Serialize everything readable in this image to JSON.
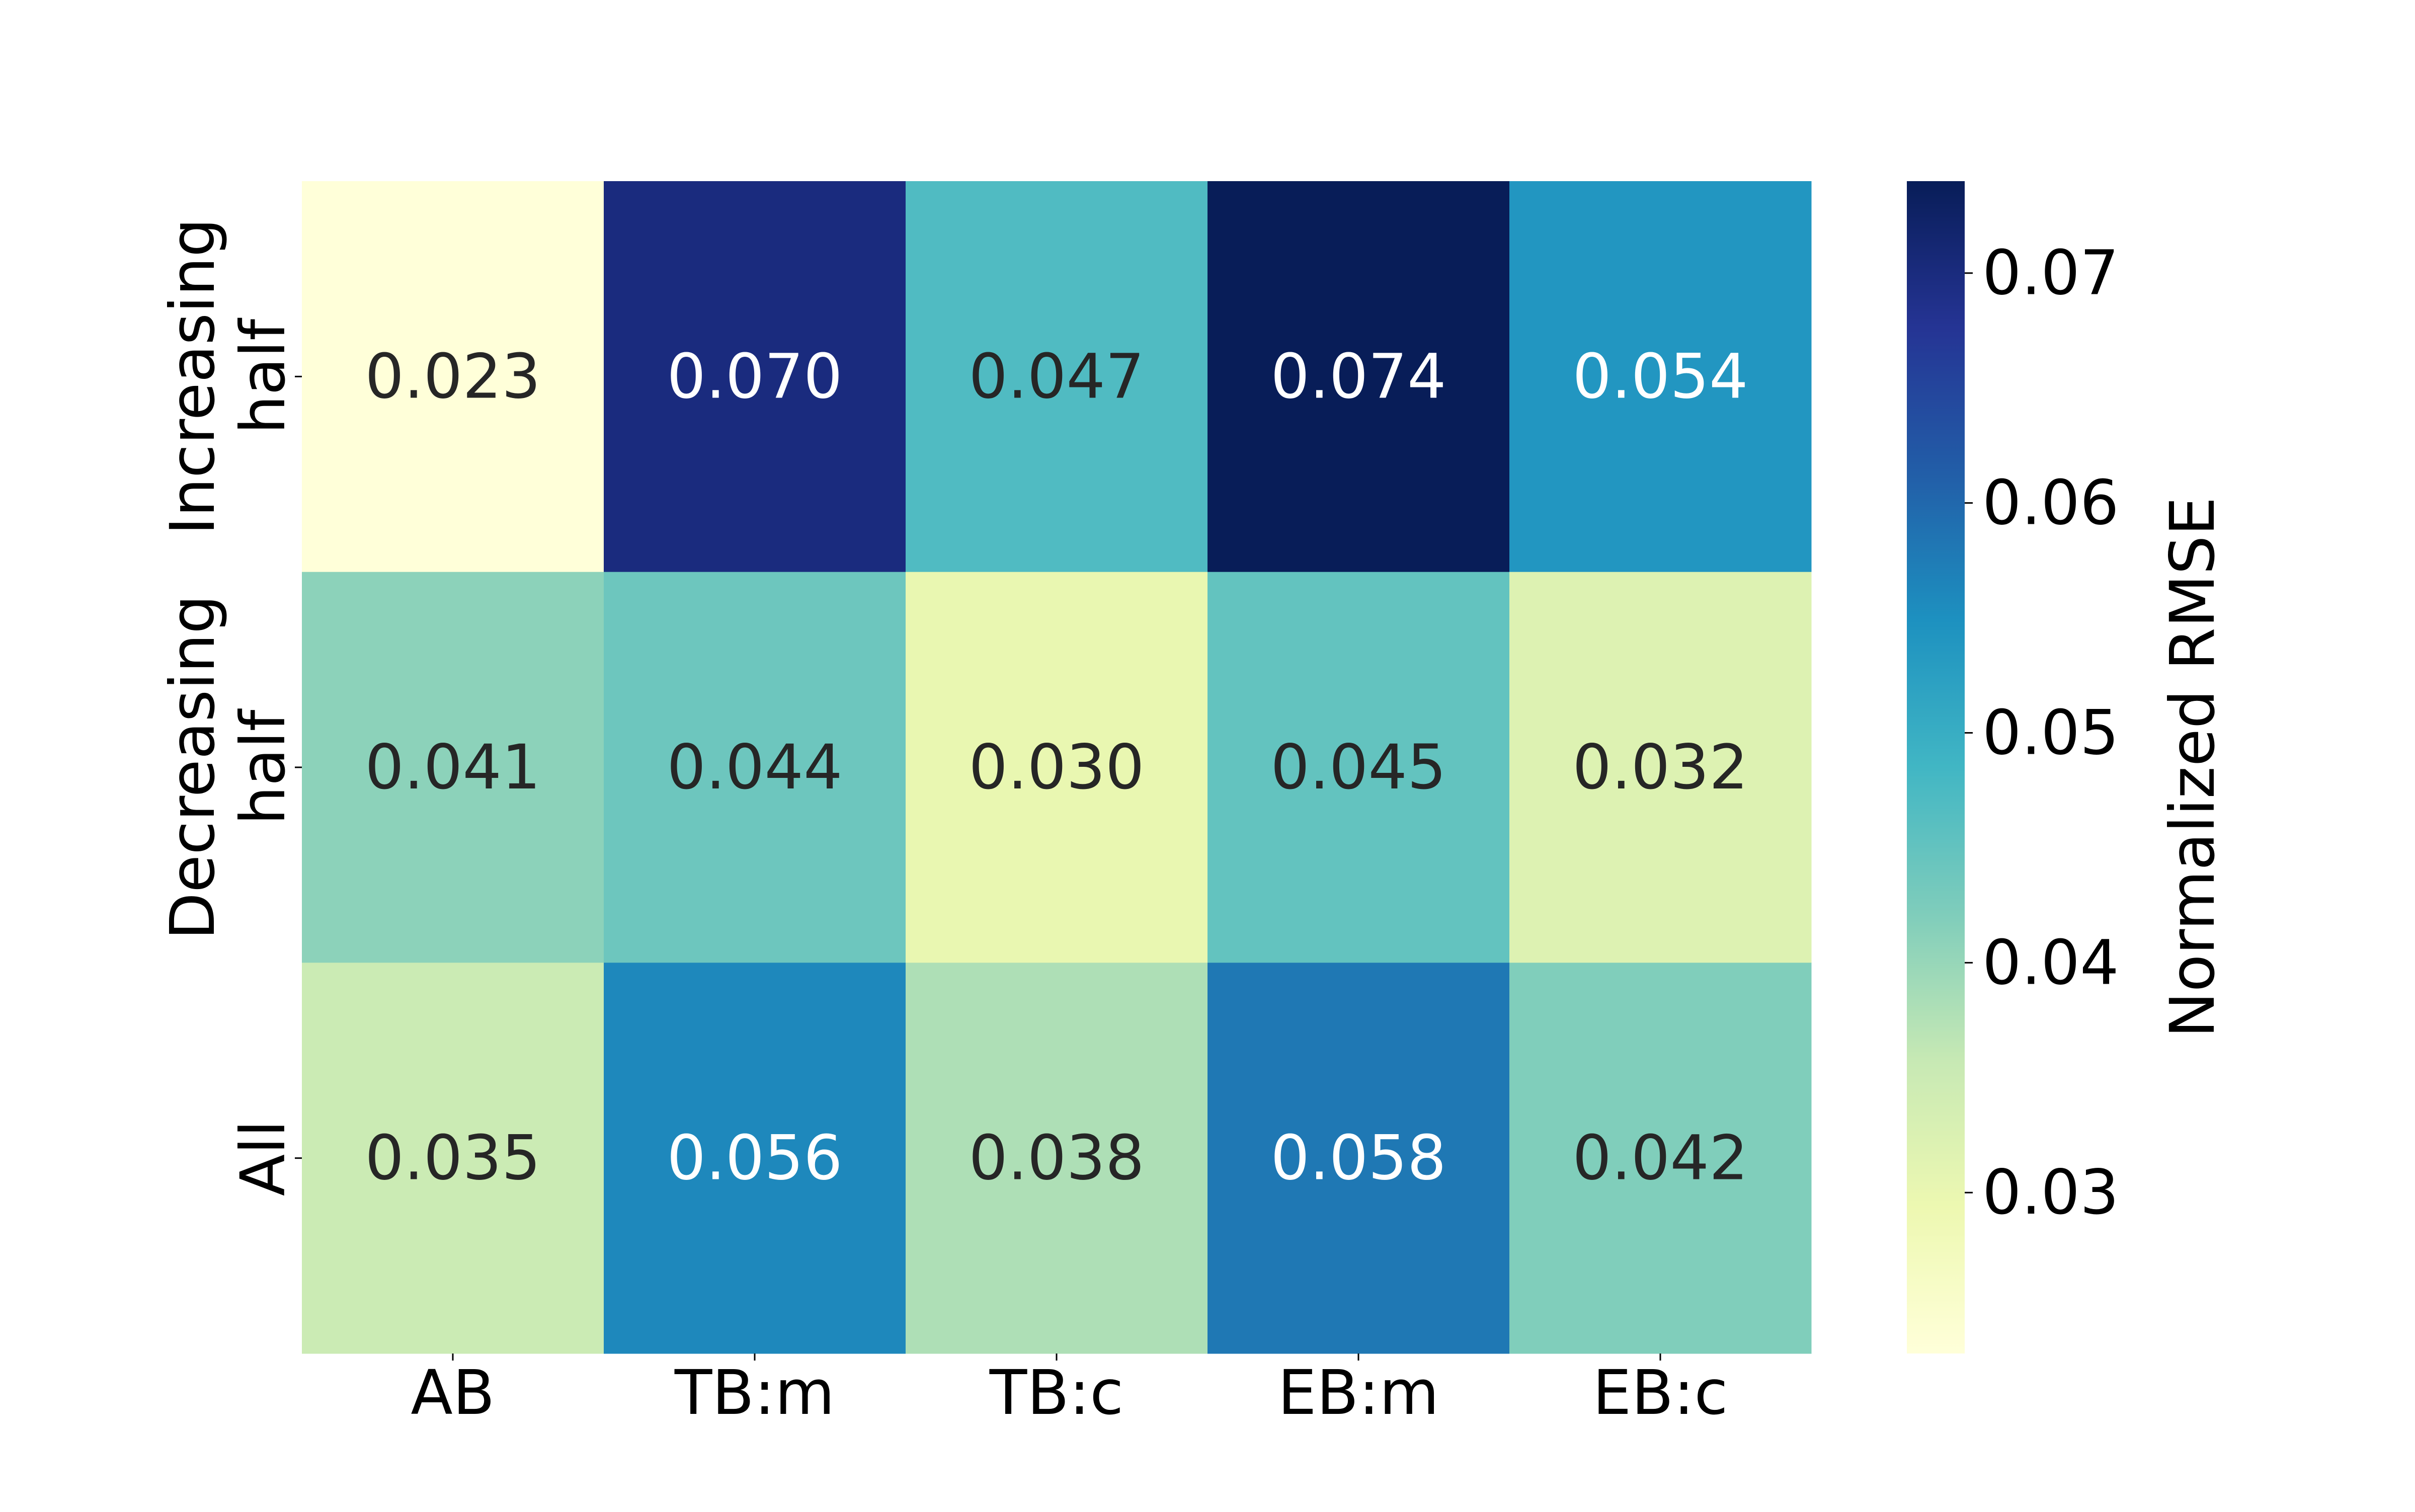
{
  "chart_data": {
    "type": "heatmap",
    "title": "",
    "xlabel": "",
    "ylabel": "",
    "x_categories": [
      "AB",
      "TB:m",
      "TB:c",
      "EB:m",
      "EB:c"
    ],
    "y_categories": [
      {
        "line1": "Increasing",
        "line2": "half"
      },
      {
        "line1": "Decreasing",
        "line2": "half"
      },
      {
        "line1": "All",
        "line2": ""
      }
    ],
    "values": [
      [
        0.023,
        0.07,
        0.047,
        0.074,
        0.054
      ],
      [
        0.041,
        0.044,
        0.03,
        0.045,
        0.032
      ],
      [
        0.035,
        0.056,
        0.038,
        0.058,
        0.042
      ]
    ],
    "value_format_decimals": 3,
    "colormap": "YlGnBu",
    "colormap_stops": [
      "#ffffd9",
      "#edf8b1",
      "#c7e9b4",
      "#7fcdbb",
      "#41b6c4",
      "#1d91c0",
      "#225ea8",
      "#253494",
      "#081d58"
    ],
    "colorbar": {
      "label": "Normalized RMSE",
      "min": 0.023,
      "max": 0.074,
      "ticks": [
        0.03,
        0.04,
        0.05,
        0.06,
        0.07
      ],
      "tick_labels": [
        "0.03",
        "0.04",
        "0.05",
        "0.06",
        "0.07"
      ]
    },
    "text_color_dark": "#262626",
    "text_color_light": "#ffffff"
  }
}
